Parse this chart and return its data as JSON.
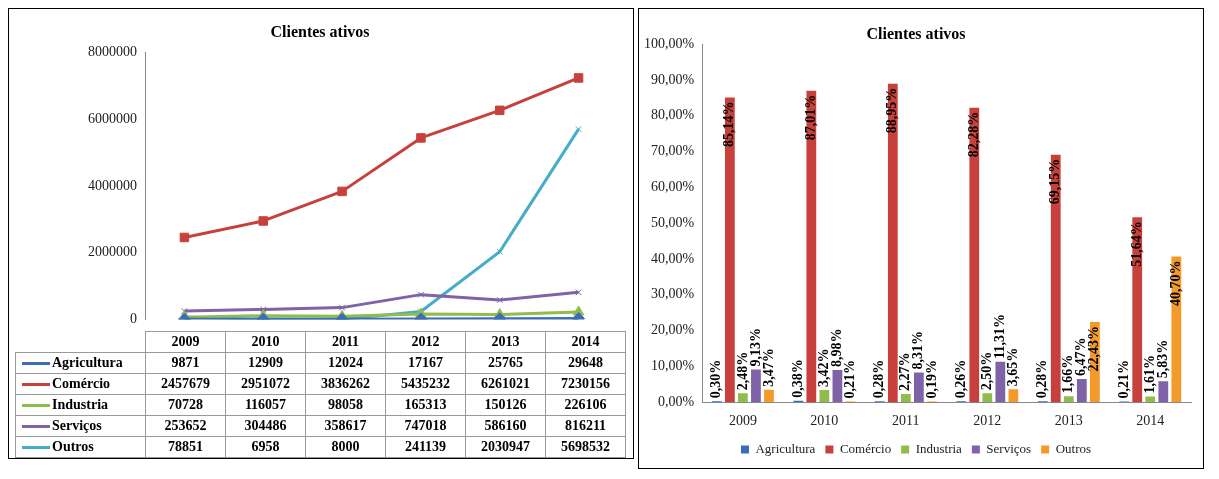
{
  "chart_data": [
    {
      "type": "line",
      "title": "Clientes ativos",
      "categories": [
        "2009",
        "2010",
        "2011",
        "2012",
        "2013",
        "2014"
      ],
      "ylim": [
        0,
        8000000
      ],
      "yticks": [
        0,
        2000000,
        4000000,
        6000000,
        8000000
      ],
      "grid": false,
      "legend": "bottom",
      "data_labels": true,
      "series": [
        {
          "name": "Agricultura",
          "color": "#3a6fb5",
          "marker": "diamond",
          "values": [
            9871,
            12909,
            12024,
            17167,
            25765,
            29648
          ]
        },
        {
          "name": "Comércio",
          "color": "#c8403c",
          "marker": "square",
          "values": [
            2457679,
            2951072,
            3836262,
            5435232,
            6261021,
            7230156
          ]
        },
        {
          "name": "Industria",
          "color": "#8fbc4b",
          "marker": "triangle",
          "values": [
            70728,
            116057,
            98058,
            165313,
            150126,
            226106
          ]
        },
        {
          "name": "Serviços",
          "color": "#7f62a8",
          "marker": "cross",
          "values": [
            253652,
            304486,
            358617,
            747018,
            586160,
            816211
          ]
        },
        {
          "name": "Outros",
          "color": "#46adc8",
          "marker": "cross",
          "values": [
            78851,
            6958,
            8000,
            241139,
            2030947,
            5698532
          ]
        }
      ]
    },
    {
      "type": "bar",
      "title": "Clientes ativos",
      "categories": [
        "2009",
        "2010",
        "2011",
        "2012",
        "2013",
        "2014"
      ],
      "ylim": [
        0,
        100
      ],
      "yticks": [
        {
          "value": 0,
          "label": "0,00%"
        },
        {
          "value": 10,
          "label": "10,00%"
        },
        {
          "value": 20,
          "label": "20,00%"
        },
        {
          "value": 30,
          "label": "30,00%"
        },
        {
          "value": 40,
          "label": "40,00%"
        },
        {
          "value": 50,
          "label": "50,00%"
        },
        {
          "value": 60,
          "label": "60,00%"
        },
        {
          "value": 70,
          "label": "70,00%"
        },
        {
          "value": 80,
          "label": "80,00%"
        },
        {
          "value": 90,
          "label": "90,00%"
        },
        {
          "value": 100,
          "label": "100,00%"
        }
      ],
      "grid": false,
      "legend": "bottom",
      "series": [
        {
          "name": "Agricultura",
          "color": "#3a6fb5",
          "values": [
            0.3,
            0.38,
            0.28,
            0.26,
            0.28,
            0.21
          ],
          "value_labels": [
            "0,30%",
            "0,38%",
            "0,28%",
            "0,26%",
            "0,28%",
            "0,21%"
          ]
        },
        {
          "name": "Comércio",
          "color": "#c8403c",
          "values": [
            85.14,
            87.01,
            88.95,
            82.28,
            69.15,
            51.64
          ],
          "value_labels": [
            "85,14%",
            "87,01%",
            "88,95%",
            "82,28%",
            "69,15%",
            "51,64%"
          ]
        },
        {
          "name": "Industria",
          "color": "#8fbc4b",
          "values": [
            2.48,
            3.42,
            2.27,
            2.5,
            1.66,
            1.61
          ],
          "value_labels": [
            "2,48%",
            "3,42%",
            "2,27%",
            "2,50%",
            "1,66%",
            "1,61%"
          ]
        },
        {
          "name": "Serviços",
          "color": "#7f62a8",
          "values": [
            9.13,
            8.98,
            8.31,
            11.31,
            6.47,
            5.83
          ],
          "value_labels": [
            "9,13%",
            "8,98%",
            "8,31%",
            "11,31%",
            "6,47%",
            "5,83%"
          ]
        },
        {
          "name": "Outros",
          "color": "#f39a2a",
          "values": [
            3.47,
            0.21,
            0.19,
            3.65,
            22.43,
            40.7
          ],
          "value_labels": [
            "3,47%",
            "0,21%",
            "0,19%",
            "3,65%",
            "22,43%",
            "40,70%"
          ]
        }
      ]
    }
  ]
}
